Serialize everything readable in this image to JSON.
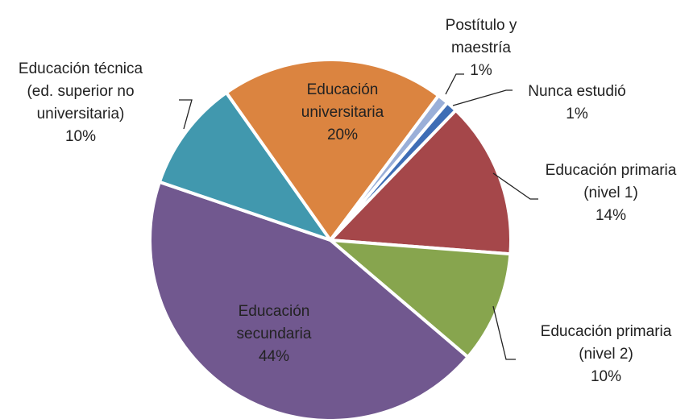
{
  "chart_data": {
    "type": "pie",
    "categories": [
      "Educación primaria (nivel 1)",
      "Educación primaria (nivel 2)",
      "Educación secundaria",
      "Educación técnica (ed. superior no universitaria)",
      "Educación universitaria",
      "Postítulo y maestría",
      "Nunca estudió"
    ],
    "values": [
      14,
      10,
      44,
      10,
      20,
      1,
      1
    ],
    "value_labels": [
      "14%",
      "10%",
      "44%",
      "10%",
      "20%",
      "1%",
      "1%"
    ],
    "colors": [
      "#a5474a",
      "#87a54e",
      "#71588f",
      "#4198ae",
      "#db8440",
      "#9aafd8",
      "#3e6db5"
    ]
  }
}
